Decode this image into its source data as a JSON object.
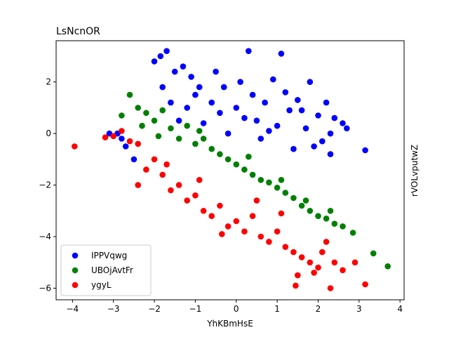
{
  "chart_data": {
    "type": "scatter",
    "title": "LsNcnOR",
    "xlabel": "YhKBmHsE",
    "ylabel": "rVOLvputwZ",
    "xlim": [
      -4.4,
      4.1
    ],
    "ylim": [
      -6.45,
      3.6
    ],
    "xticks": [
      -4,
      -3,
      -2,
      -1,
      0,
      1,
      2,
      3,
      4
    ],
    "yticks": [
      -6,
      -4,
      -2,
      0,
      2
    ],
    "grid": false,
    "legend_position": "lower-left",
    "series": [
      {
        "name": "IPPVqwg",
        "color": "#0000ff",
        "points": [
          [
            -3.1,
            0.0
          ],
          [
            -2.9,
            0.0
          ],
          [
            -2.8,
            -0.2
          ],
          [
            -2.7,
            -0.5
          ],
          [
            -2.5,
            -1.0
          ],
          [
            -2.0,
            2.8
          ],
          [
            -1.85,
            3.0
          ],
          [
            -1.7,
            3.2
          ],
          [
            -1.5,
            2.4
          ],
          [
            -1.3,
            2.6
          ],
          [
            -1.1,
            2.2
          ],
          [
            -0.9,
            1.8
          ],
          [
            -1.4,
            0.5
          ],
          [
            -1.2,
            1.0
          ],
          [
            -1.0,
            1.5
          ],
          [
            -0.8,
            0.4
          ],
          [
            -0.6,
            1.2
          ],
          [
            -0.5,
            2.4
          ],
          [
            -0.3,
            1.8
          ],
          [
            -0.2,
            0.0
          ],
          [
            0.0,
            1.0
          ],
          [
            0.1,
            2.0
          ],
          [
            0.3,
            3.2
          ],
          [
            0.4,
            1.5
          ],
          [
            0.5,
            0.5
          ],
          [
            0.6,
            -0.2
          ],
          [
            0.7,
            1.2
          ],
          [
            0.9,
            2.1
          ],
          [
            1.0,
            0.3
          ],
          [
            1.1,
            3.1
          ],
          [
            1.2,
            1.6
          ],
          [
            1.3,
            0.9
          ],
          [
            1.4,
            -0.6
          ],
          [
            1.5,
            1.3
          ],
          [
            1.7,
            0.2
          ],
          [
            1.8,
            2.0
          ],
          [
            2.0,
            0.7
          ],
          [
            2.1,
            -0.3
          ],
          [
            2.2,
            1.2
          ],
          [
            2.3,
            0.0
          ],
          [
            2.4,
            0.6
          ],
          [
            2.6,
            0.4
          ],
          [
            2.7,
            0.2
          ],
          [
            3.15,
            -0.65
          ],
          [
            -1.8,
            1.8
          ],
          [
            -1.6,
            1.2
          ],
          [
            -0.4,
            0.8
          ],
          [
            0.2,
            0.6
          ],
          [
            0.8,
            0.1
          ],
          [
            1.6,
            0.9
          ],
          [
            1.9,
            -0.5
          ],
          [
            2.3,
            -0.8
          ]
        ]
      },
      {
        "name": "UBOjAvtFr",
        "color": "#008000",
        "points": [
          [
            -2.6,
            1.5
          ],
          [
            -2.4,
            1.0
          ],
          [
            -2.2,
            0.8
          ],
          [
            -2.0,
            0.5
          ],
          [
            -1.8,
            0.9
          ],
          [
            -1.6,
            0.2
          ],
          [
            -1.4,
            -0.2
          ],
          [
            -1.2,
            0.3
          ],
          [
            -1.0,
            -0.4
          ],
          [
            -0.8,
            -0.2
          ],
          [
            -0.6,
            -0.6
          ],
          [
            -0.4,
            -0.8
          ],
          [
            -0.2,
            -1.0
          ],
          [
            0.0,
            -1.2
          ],
          [
            0.2,
            -1.4
          ],
          [
            0.4,
            -1.6
          ],
          [
            0.6,
            -1.8
          ],
          [
            0.8,
            -1.9
          ],
          [
            1.0,
            -2.1
          ],
          [
            1.2,
            -2.3
          ],
          [
            1.4,
            -2.5
          ],
          [
            1.6,
            -2.8
          ],
          [
            1.8,
            -3.0
          ],
          [
            2.0,
            -3.2
          ],
          [
            2.2,
            -3.3
          ],
          [
            2.4,
            -3.5
          ],
          [
            2.6,
            -3.6
          ],
          [
            2.85,
            -3.85
          ],
          [
            3.35,
            -4.65
          ],
          [
            3.7,
            -5.15
          ],
          [
            -2.8,
            0.7
          ],
          [
            -2.3,
            0.3
          ],
          [
            -1.9,
            -0.1
          ],
          [
            -0.9,
            0.1
          ],
          [
            0.3,
            -0.9
          ],
          [
            1.1,
            -1.8
          ],
          [
            1.7,
            -2.6
          ],
          [
            2.3,
            -3.0
          ]
        ]
      },
      {
        "name": "ygyL",
        "color": "#ff0000",
        "points": [
          [
            -3.95,
            -0.5
          ],
          [
            -3.2,
            -0.15
          ],
          [
            -3.0,
            -0.1
          ],
          [
            -2.8,
            0.1
          ],
          [
            -2.6,
            -0.3
          ],
          [
            -2.4,
            -0.4
          ],
          [
            -2.4,
            -2.0
          ],
          [
            -2.2,
            -1.4
          ],
          [
            -2.0,
            -1.0
          ],
          [
            -1.8,
            -1.6
          ],
          [
            -1.6,
            -2.2
          ],
          [
            -1.4,
            -2.0
          ],
          [
            -1.2,
            -2.6
          ],
          [
            -1.0,
            -2.4
          ],
          [
            -0.8,
            -3.0
          ],
          [
            -0.6,
            -3.2
          ],
          [
            -0.4,
            -2.8
          ],
          [
            -0.2,
            -3.6
          ],
          [
            0.0,
            -3.4
          ],
          [
            0.2,
            -3.8
          ],
          [
            0.4,
            -3.2
          ],
          [
            0.6,
            -4.0
          ],
          [
            0.8,
            -4.2
          ],
          [
            1.0,
            -3.8
          ],
          [
            1.2,
            -4.4
          ],
          [
            1.4,
            -4.6
          ],
          [
            1.45,
            -5.9
          ],
          [
            1.6,
            -4.8
          ],
          [
            1.8,
            -5.0
          ],
          [
            1.9,
            -5.4
          ],
          [
            2.0,
            -5.2
          ],
          [
            2.3,
            -6.0
          ],
          [
            2.4,
            -5.0
          ],
          [
            2.6,
            -5.3
          ],
          [
            2.9,
            -5.0
          ],
          [
            3.15,
            -5.85
          ],
          [
            -0.35,
            -3.9
          ],
          [
            1.5,
            -5.5
          ],
          [
            2.1,
            -4.6
          ],
          [
            -1.7,
            -1.2
          ],
          [
            -0.9,
            -1.8
          ],
          [
            0.5,
            -2.6
          ],
          [
            1.1,
            -3.1
          ],
          [
            2.2,
            -4.2
          ]
        ]
      }
    ]
  }
}
